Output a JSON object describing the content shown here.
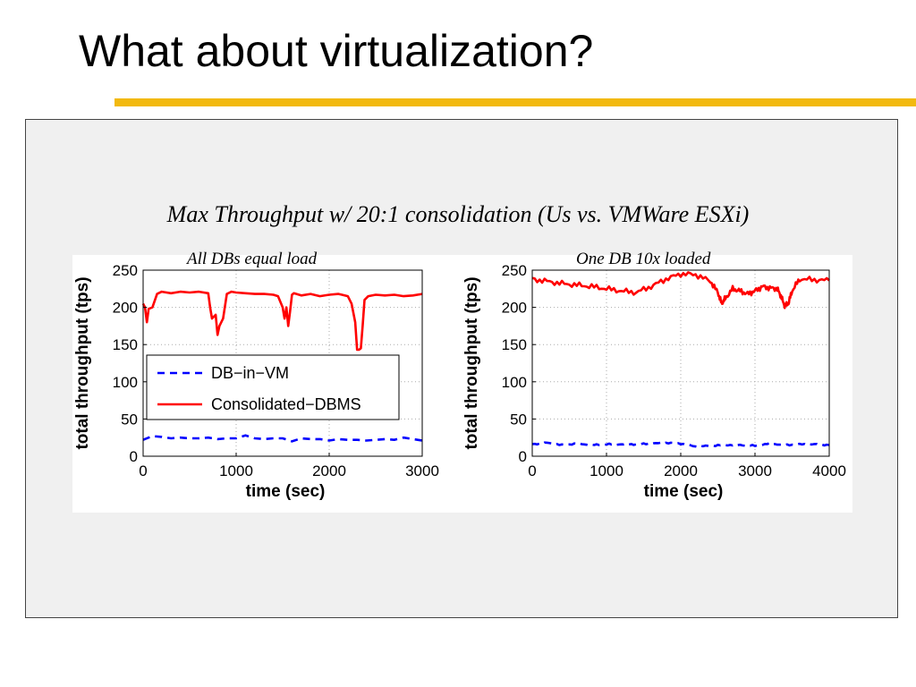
{
  "slide": {
    "title": "What about virtualization?",
    "heading": "Max Throughput w/ 20:1 consolidation (Us vs. VMWare ESXi)",
    "accent_color": "#f2b90f"
  },
  "chart_data": [
    {
      "type": "line",
      "title": "All DBs equal load",
      "xlabel": "time (sec)",
      "ylabel": "total throughput (tps)",
      "xlim": [
        0,
        3000
      ],
      "ylim": [
        0,
        250
      ],
      "xticks": [
        0,
        1000,
        2000,
        3000
      ],
      "yticks": [
        0,
        50,
        100,
        150,
        200,
        250
      ],
      "grid": true,
      "legend": "middle-left",
      "series": [
        {
          "name": "DB−in−VM",
          "color": "#0000ff",
          "style": "dashed",
          "x": [
            0,
            100,
            200,
            300,
            400,
            500,
            600,
            700,
            800,
            900,
            1000,
            1100,
            1200,
            1300,
            1400,
            1500,
            1600,
            1700,
            1800,
            1900,
            2000,
            2100,
            2200,
            2300,
            2400,
            2500,
            2600,
            2700,
            2800,
            2900,
            3000
          ],
          "y": [
            22,
            27,
            26,
            24,
            25,
            24,
            24,
            25,
            23,
            24,
            24,
            28,
            24,
            23,
            24,
            24,
            20,
            24,
            23,
            23,
            21,
            23,
            22,
            22,
            21,
            22,
            23,
            22,
            25,
            23,
            21
          ]
        },
        {
          "name": "Consolidated−DBMS",
          "color": "#ff0000",
          "style": "solid",
          "x": [
            0,
            20,
            40,
            60,
            100,
            150,
            200,
            300,
            400,
            500,
            600,
            700,
            720,
            740,
            780,
            800,
            820,
            860,
            900,
            950,
            1000,
            1100,
            1200,
            1300,
            1400,
            1450,
            1500,
            1520,
            1540,
            1560,
            1580,
            1600,
            1620,
            1700,
            1800,
            1900,
            2000,
            2100,
            2200,
            2240,
            2280,
            2300,
            2320,
            2340,
            2360,
            2380,
            2420,
            2500,
            2600,
            2700,
            2800,
            2900,
            3000
          ],
          "y": [
            205,
            200,
            180,
            198,
            200,
            218,
            221,
            219,
            221,
            220,
            221,
            219,
            200,
            185,
            190,
            163,
            175,
            185,
            218,
            221,
            220,
            219,
            218,
            218,
            217,
            215,
            200,
            185,
            200,
            175,
            195,
            217,
            219,
            216,
            218,
            215,
            217,
            218,
            215,
            205,
            180,
            143,
            143,
            145,
            175,
            210,
            215,
            217,
            216,
            217,
            215,
            216,
            218
          ]
        }
      ]
    },
    {
      "type": "line",
      "title": "One DB 10x loaded",
      "xlabel": "time (sec)",
      "ylabel": "total throughput (tps)",
      "xlim": [
        0,
        4000
      ],
      "ylim": [
        0,
        250
      ],
      "xticks": [
        0,
        1000,
        2000,
        3000,
        4000
      ],
      "yticks": [
        0,
        50,
        100,
        150,
        200,
        250
      ],
      "grid": true,
      "series": [
        {
          "name": "DB−in−VM",
          "color": "#0000ff",
          "style": "dashed",
          "x": [
            0,
            200,
            400,
            600,
            800,
            1000,
            1200,
            1400,
            1600,
            1800,
            2000,
            2200,
            2400,
            2600,
            2800,
            3000,
            3200,
            3400,
            3600,
            3800,
            4000
          ],
          "y": [
            16,
            18,
            15,
            17,
            15,
            16,
            16,
            16,
            17,
            18,
            17,
            13,
            14,
            15,
            15,
            14,
            17,
            15,
            16,
            16,
            15
          ],
          "noise": 1
        },
        {
          "name": "Consolidated−DBMS",
          "color": "#ff0000",
          "style": "solid",
          "x": [
            0,
            200,
            400,
            600,
            800,
            1000,
            1200,
            1400,
            1600,
            1800,
            2000,
            2200,
            2400,
            2500,
            2550,
            2600,
            2700,
            2800,
            2900,
            3000,
            3100,
            3200,
            3300,
            3350,
            3400,
            3450,
            3500,
            3600,
            3800,
            4000
          ],
          "y": [
            238,
            235,
            232,
            230,
            228,
            225,
            222,
            220,
            228,
            238,
            245,
            244,
            235,
            220,
            205,
            212,
            225,
            222,
            218,
            222,
            228,
            226,
            225,
            215,
            202,
            205,
            222,
            238,
            237,
            236
          ],
          "noise": 4
        }
      ]
    }
  ]
}
